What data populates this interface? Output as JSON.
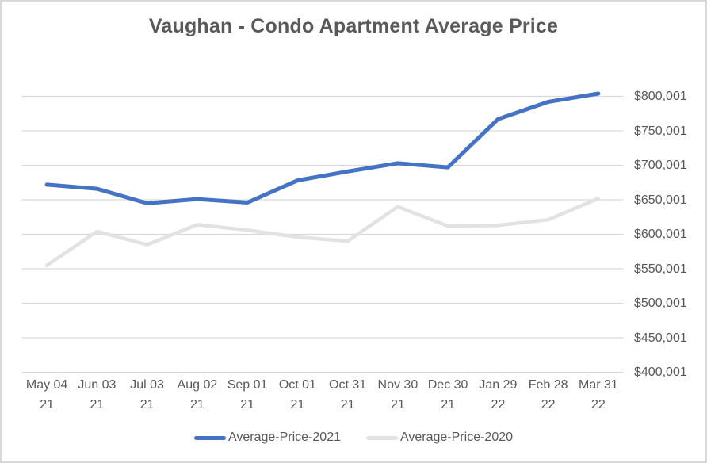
{
  "chart_data": {
    "type": "line",
    "title": "Vaughan - Condo Apartment Average Price",
    "categories": [
      "May 04 21",
      "Jun 03 21",
      "Jul 03 21",
      "Aug 02 21",
      "Sep 01 21",
      "Oct 01 21",
      "Oct 31 21",
      "Nov 30 21",
      "Dec 30 21",
      "Jan 29 22",
      "Feb 28 22",
      "Mar 31 22"
    ],
    "series": [
      {
        "name": "Average-Price-2021",
        "color": "#4472C4",
        "stroke_width": 5,
        "values": [
          672000,
          666000,
          645000,
          651000,
          646000,
          678000,
          691000,
          703000,
          697000,
          767000,
          792000,
          804000
        ]
      },
      {
        "name": "Average-Price-2020",
        "color": "#E2E2E2",
        "stroke_width": 4.5,
        "values": [
          555000,
          604000,
          585000,
          614000,
          606000,
          596000,
          590000,
          640000,
          612000,
          613000,
          621000,
          652000
        ]
      }
    ],
    "y_axis": {
      "min": 400001,
      "max": 800001,
      "step": 50000,
      "side": "right",
      "tick_labels_top_to_bottom": [
        "$800,001",
        "$750,001",
        "$700,001",
        "$650,001",
        "$600,001",
        "$550,001",
        "$500,001",
        "$450,001",
        "$400,001"
      ]
    },
    "grid": true,
    "gridline_color": "#D9D9D9",
    "legend_position": "bottom"
  },
  "colors": {
    "text": "#595959",
    "border": "#D9D9D9",
    "background": "#FFFFFF"
  }
}
